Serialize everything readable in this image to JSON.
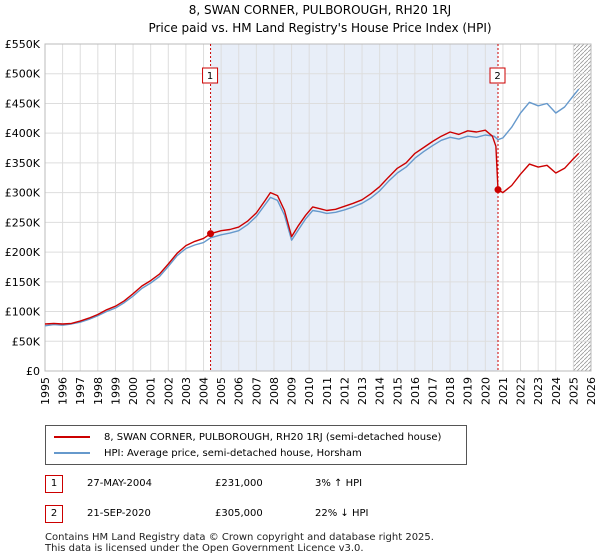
{
  "chart_data": {
    "type": "line",
    "title": "8, SWAN CORNER, PULBOROUGH, RH20 1RJ",
    "subtitle": "Price paid vs. HM Land Registry's House Price Index (HPI)",
    "ylim": [
      0,
      550000
    ],
    "xlim": [
      1995,
      2026
    ],
    "y_ticks": [
      {
        "value": 0,
        "label": "£0"
      },
      {
        "value": 50000,
        "label": "£50K"
      },
      {
        "value": 100000,
        "label": "£100K"
      },
      {
        "value": 150000,
        "label": "£150K"
      },
      {
        "value": 200000,
        "label": "£200K"
      },
      {
        "value": 250000,
        "label": "£250K"
      },
      {
        "value": 300000,
        "label": "£300K"
      },
      {
        "value": 350000,
        "label": "£350K"
      },
      {
        "value": 400000,
        "label": "£400K"
      },
      {
        "value": 450000,
        "label": "£450K"
      },
      {
        "value": 500000,
        "label": "£500K"
      },
      {
        "value": 550000,
        "label": "£550K"
      }
    ],
    "x_ticks": [
      "1995",
      "1996",
      "1997",
      "1998",
      "1999",
      "2000",
      "2001",
      "2002",
      "2003",
      "2004",
      "2005",
      "2006",
      "2007",
      "2008",
      "2009",
      "2010",
      "2011",
      "2012",
      "2013",
      "2014",
      "2015",
      "2016",
      "2017",
      "2018",
      "2019",
      "2020",
      "2021",
      "2022",
      "2023",
      "2024",
      "2025",
      "2026"
    ],
    "sale_shade": {
      "from": 2004.4,
      "to": 2020.72
    },
    "hatch_from": 2025.0,
    "series": [
      {
        "name": "8, SWAN CORNER, PULBOROUGH, RH20 1RJ (semi-detached house)",
        "color": "#cc0000",
        "points": [
          [
            1995.0,
            79000
          ],
          [
            1995.5,
            80000
          ],
          [
            1996.0,
            79000
          ],
          [
            1996.5,
            80000
          ],
          [
            1997.0,
            84000
          ],
          [
            1997.5,
            89000
          ],
          [
            1998.0,
            95000
          ],
          [
            1998.5,
            103000
          ],
          [
            1999.0,
            109000
          ],
          [
            1999.5,
            118000
          ],
          [
            2000.0,
            130000
          ],
          [
            2000.5,
            143000
          ],
          [
            2001.0,
            152000
          ],
          [
            2001.5,
            163000
          ],
          [
            2002.0,
            180000
          ],
          [
            2002.5,
            198000
          ],
          [
            2003.0,
            211000
          ],
          [
            2003.5,
            218000
          ],
          [
            2004.0,
            223000
          ],
          [
            2004.4,
            231000
          ],
          [
            2005.0,
            236000
          ],
          [
            2005.5,
            238000
          ],
          [
            2006.0,
            242000
          ],
          [
            2006.5,
            252000
          ],
          [
            2007.0,
            266000
          ],
          [
            2007.5,
            287000
          ],
          [
            2007.8,
            300000
          ],
          [
            2008.2,
            295000
          ],
          [
            2008.6,
            270000
          ],
          [
            2009.0,
            226000
          ],
          [
            2009.4,
            245000
          ],
          [
            2009.8,
            262000
          ],
          [
            2010.2,
            276000
          ],
          [
            2010.6,
            273000
          ],
          [
            2011.0,
            270000
          ],
          [
            2011.5,
            272000
          ],
          [
            2012.0,
            277000
          ],
          [
            2012.5,
            282000
          ],
          [
            2013.0,
            288000
          ],
          [
            2013.5,
            298000
          ],
          [
            2014.0,
            310000
          ],
          [
            2014.5,
            326000
          ],
          [
            2015.0,
            341000
          ],
          [
            2015.5,
            350000
          ],
          [
            2016.0,
            366000
          ],
          [
            2016.5,
            376000
          ],
          [
            2017.0,
            386000
          ],
          [
            2017.5,
            395000
          ],
          [
            2018.0,
            402000
          ],
          [
            2018.5,
            398000
          ],
          [
            2019.0,
            404000
          ],
          [
            2019.5,
            402000
          ],
          [
            2020.0,
            405000
          ],
          [
            2020.4,
            395000
          ],
          [
            2020.6,
            378000
          ],
          [
            2020.72,
            305000
          ],
          [
            2021.0,
            300000
          ],
          [
            2021.5,
            312000
          ],
          [
            2022.0,
            331000
          ],
          [
            2022.5,
            348000
          ],
          [
            2023.0,
            343000
          ],
          [
            2023.5,
            346000
          ],
          [
            2024.0,
            333000
          ],
          [
            2024.5,
            341000
          ],
          [
            2025.0,
            357000
          ],
          [
            2025.3,
            366000
          ]
        ]
      },
      {
        "name": "HPI: Average price, semi-detached house, Horsham",
        "color": "#6699cc",
        "points": [
          [
            1995.0,
            76000
          ],
          [
            1995.5,
            78000
          ],
          [
            1996.0,
            77000
          ],
          [
            1996.5,
            79000
          ],
          [
            1997.0,
            82000
          ],
          [
            1997.5,
            87000
          ],
          [
            1998.0,
            93000
          ],
          [
            1998.5,
            100000
          ],
          [
            1999.0,
            106000
          ],
          [
            1999.5,
            115000
          ],
          [
            2000.0,
            126000
          ],
          [
            2000.5,
            139000
          ],
          [
            2001.0,
            148000
          ],
          [
            2001.5,
            159000
          ],
          [
            2002.0,
            176000
          ],
          [
            2002.5,
            194000
          ],
          [
            2003.0,
            206000
          ],
          [
            2003.5,
            212000
          ],
          [
            2004.0,
            216000
          ],
          [
            2004.4,
            224000
          ],
          [
            2005.0,
            229000
          ],
          [
            2005.5,
            232000
          ],
          [
            2006.0,
            236000
          ],
          [
            2006.5,
            246000
          ],
          [
            2007.0,
            260000
          ],
          [
            2007.5,
            280000
          ],
          [
            2007.8,
            292000
          ],
          [
            2008.2,
            287000
          ],
          [
            2008.6,
            262000
          ],
          [
            2009.0,
            220000
          ],
          [
            2009.4,
            238000
          ],
          [
            2009.8,
            256000
          ],
          [
            2010.2,
            270000
          ],
          [
            2010.6,
            268000
          ],
          [
            2011.0,
            265000
          ],
          [
            2011.5,
            267000
          ],
          [
            2012.0,
            271000
          ],
          [
            2012.5,
            276000
          ],
          [
            2013.0,
            282000
          ],
          [
            2013.5,
            291000
          ],
          [
            2014.0,
            303000
          ],
          [
            2014.5,
            319000
          ],
          [
            2015.0,
            333000
          ],
          [
            2015.5,
            343000
          ],
          [
            2016.0,
            358000
          ],
          [
            2016.5,
            369000
          ],
          [
            2017.0,
            379000
          ],
          [
            2017.5,
            388000
          ],
          [
            2018.0,
            393000
          ],
          [
            2018.5,
            390000
          ],
          [
            2019.0,
            395000
          ],
          [
            2019.5,
            393000
          ],
          [
            2020.0,
            397000
          ],
          [
            2020.5,
            395000
          ],
          [
            2020.72,
            389000
          ],
          [
            2021.0,
            392000
          ],
          [
            2021.5,
            410000
          ],
          [
            2022.0,
            434000
          ],
          [
            2022.5,
            452000
          ],
          [
            2023.0,
            446000
          ],
          [
            2023.5,
            450000
          ],
          [
            2024.0,
            434000
          ],
          [
            2024.5,
            444000
          ],
          [
            2025.0,
            463000
          ],
          [
            2025.3,
            474000
          ]
        ]
      }
    ],
    "annotations": [
      {
        "num": "1",
        "x": 2004.4,
        "value": 231000
      },
      {
        "num": "2",
        "x": 2020.72,
        "value": 305000
      }
    ]
  },
  "legend": {
    "property": "8, SWAN CORNER, PULBOROUGH, RH20 1RJ (semi-detached house)",
    "hpi": "HPI: Average price, semi-detached house, Horsham",
    "property_color": "#cc0000",
    "hpi_color": "#6699cc"
  },
  "sales": [
    {
      "num": "1",
      "date": "27-MAY-2004",
      "price": "£231,000",
      "hpi": "3% ↑ HPI"
    },
    {
      "num": "2",
      "date": "21-SEP-2020",
      "price": "£305,000",
      "hpi": "22% ↓ HPI"
    }
  ],
  "footer": {
    "line1": "Contains HM Land Registry data © Crown copyright and database right 2025.",
    "line2": "This data is licensed under the Open Government Licence v3.0."
  }
}
